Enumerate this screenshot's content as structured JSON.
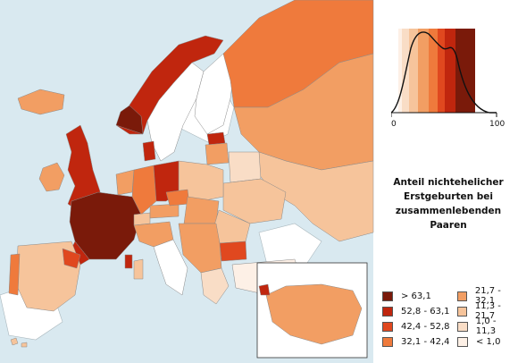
{
  "title_lines": [
    "Anteil nichtehelicher",
    "Erstgeburten bei",
    "zusammenlebenden",
    "Paaren"
  ],
  "legend": [
    {
      "label": "> 63,1",
      "color": "#7a1a0a"
    },
    {
      "label": "52,8 - 63,1",
      "color": "#c0260e"
    },
    {
      "label": "42,4 - 52,8",
      "color": "#e0481f"
    },
    {
      "label": "32,1 - 42,4",
      "color": "#ef7a3c"
    },
    {
      "label": "21,7 - 32,1",
      "color": "#f29e63"
    },
    {
      "label": "11,3 - 21,7",
      "color": "#f6c49b"
    },
    {
      "label": "1,0 - 11,3",
      "color": "#f9ddc6"
    },
    {
      "label": "< 1,0",
      "color": "#fdf0e6"
    }
  ],
  "histogram": {
    "axis_min_label": "0",
    "axis_max_label": "100"
  }
}
